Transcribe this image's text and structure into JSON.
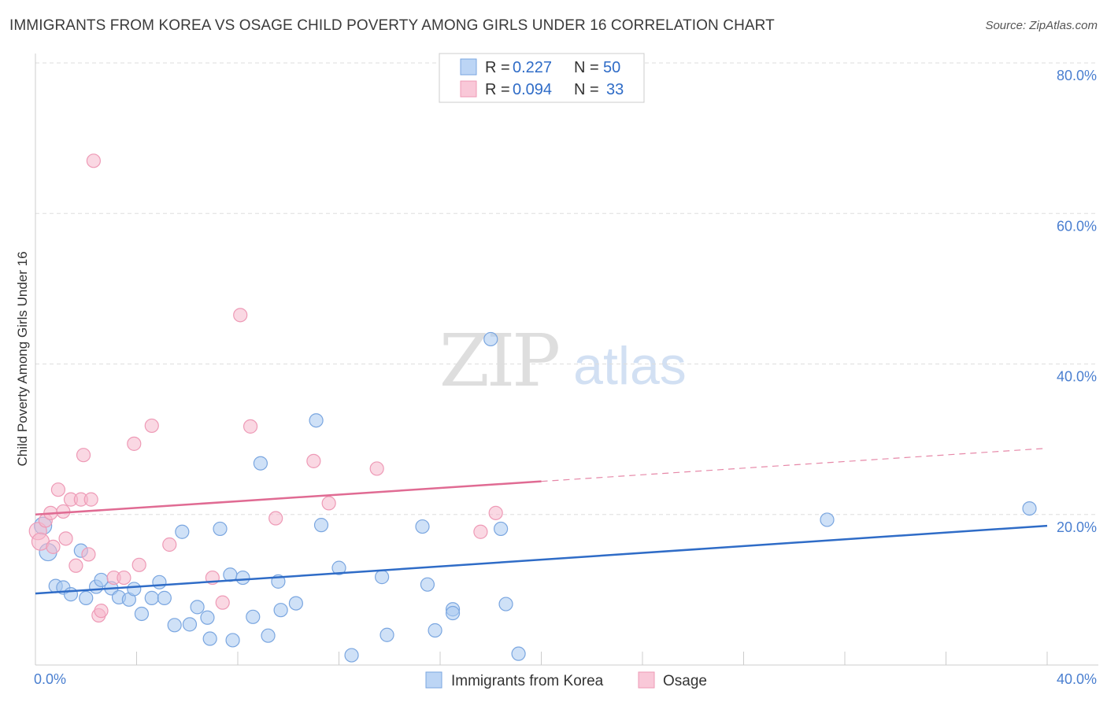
{
  "title": "IMMIGRANTS FROM KOREA VS OSAGE CHILD POVERTY AMONG GIRLS UNDER 16 CORRELATION CHART",
  "source": "Source: ZipAtlas.com",
  "watermark": {
    "zip": "ZIP",
    "atlas": "atlas"
  },
  "legend": {
    "r_label": "R =",
    "n_label": "N =",
    "korea": {
      "r": "0.227",
      "n": "50"
    },
    "osage": {
      "r": "0.094",
      "n": "33"
    }
  },
  "chart_data": {
    "type": "scatter",
    "title": "IMMIGRANTS FROM KOREA VS OSAGE CHILD POVERTY AMONG GIRLS UNDER 16 CORRELATION CHART",
    "xlabel": "",
    "ylabel": "Child Poverty Among Girls Under 16",
    "xlim": [
      0,
      40
    ],
    "ylim": [
      0,
      80
    ],
    "x_tick_labels": [
      "0.0%",
      "40.0%"
    ],
    "y_ticks": [
      20,
      40,
      60,
      80
    ],
    "y_tick_labels": [
      "20.0%",
      "40.0%",
      "60.0%",
      "80.0%"
    ],
    "colors": {
      "korea": "#a8c8f0",
      "korea_line": "#2f6cc7",
      "osage": "#f5b8cc",
      "osage_line": "#e06b93"
    },
    "series": [
      {
        "name": "Immigrants from Korea",
        "key": "korea",
        "r": 0.227,
        "n": 50,
        "trend": {
          "x0": 0,
          "y0": 9.5,
          "x1": 40,
          "y1": 18.5
        },
        "points": [
          [
            0.3,
            18.5
          ],
          [
            0.5,
            15.0
          ],
          [
            0.8,
            10.5
          ],
          [
            1.1,
            10.3
          ],
          [
            1.4,
            9.4
          ],
          [
            1.8,
            15.2
          ],
          [
            2.0,
            8.9
          ],
          [
            2.4,
            10.4
          ],
          [
            2.6,
            11.3
          ],
          [
            3.0,
            10.2
          ],
          [
            3.3,
            9.0
          ],
          [
            3.7,
            8.7
          ],
          [
            3.9,
            10.1
          ],
          [
            4.2,
            6.8
          ],
          [
            4.6,
            8.9
          ],
          [
            4.9,
            11.0
          ],
          [
            5.1,
            8.9
          ],
          [
            5.5,
            5.3
          ],
          [
            5.8,
            17.7
          ],
          [
            6.1,
            5.4
          ],
          [
            6.4,
            7.7
          ],
          [
            6.8,
            6.3
          ],
          [
            6.9,
            3.5
          ],
          [
            7.3,
            18.1
          ],
          [
            7.7,
            12.0
          ],
          [
            7.8,
            3.3
          ],
          [
            8.2,
            11.6
          ],
          [
            8.6,
            6.4
          ],
          [
            8.9,
            26.8
          ],
          [
            9.2,
            3.9
          ],
          [
            9.6,
            11.1
          ],
          [
            9.7,
            7.3
          ],
          [
            10.3,
            8.2
          ],
          [
            11.1,
            32.5
          ],
          [
            11.3,
            18.6
          ],
          [
            12.0,
            12.9
          ],
          [
            12.5,
            1.3
          ],
          [
            13.7,
            11.7
          ],
          [
            13.9,
            4.0
          ],
          [
            15.3,
            18.4
          ],
          [
            15.5,
            10.7
          ],
          [
            15.8,
            4.6
          ],
          [
            16.5,
            7.4
          ],
          [
            16.5,
            6.9
          ],
          [
            18.0,
            43.3
          ],
          [
            18.4,
            18.1
          ],
          [
            18.6,
            8.1
          ],
          [
            19.1,
            1.5
          ],
          [
            31.3,
            19.3
          ],
          [
            39.3,
            20.8
          ]
        ]
      },
      {
        "name": "Osage",
        "key": "osage",
        "r": 0.094,
        "n": 33,
        "trend": {
          "x0": 0,
          "y0": 20.0,
          "x1": 40,
          "y1": 28.8,
          "solid_until": 20
        },
        "points": [
          [
            0.1,
            17.8
          ],
          [
            0.2,
            16.4
          ],
          [
            0.4,
            19.2
          ],
          [
            0.6,
            20.2
          ],
          [
            0.7,
            15.7
          ],
          [
            0.9,
            23.3
          ],
          [
            1.1,
            20.4
          ],
          [
            1.2,
            16.8
          ],
          [
            1.4,
            22.0
          ],
          [
            1.6,
            13.2
          ],
          [
            1.8,
            22.0
          ],
          [
            1.9,
            27.9
          ],
          [
            2.1,
            14.7
          ],
          [
            2.2,
            22.0
          ],
          [
            2.3,
            67.0
          ],
          [
            2.5,
            6.6
          ],
          [
            2.6,
            7.2
          ],
          [
            3.1,
            11.6
          ],
          [
            3.5,
            11.6
          ],
          [
            3.9,
            29.4
          ],
          [
            4.1,
            13.3
          ],
          [
            4.6,
            31.8
          ],
          [
            5.3,
            16.0
          ],
          [
            7.0,
            11.6
          ],
          [
            7.4,
            8.3
          ],
          [
            8.1,
            46.5
          ],
          [
            8.5,
            31.7
          ],
          [
            9.5,
            19.5
          ],
          [
            11.0,
            27.1
          ],
          [
            11.6,
            21.5
          ],
          [
            13.5,
            26.1
          ],
          [
            17.6,
            17.7
          ],
          [
            18.2,
            20.2
          ]
        ]
      }
    ]
  }
}
